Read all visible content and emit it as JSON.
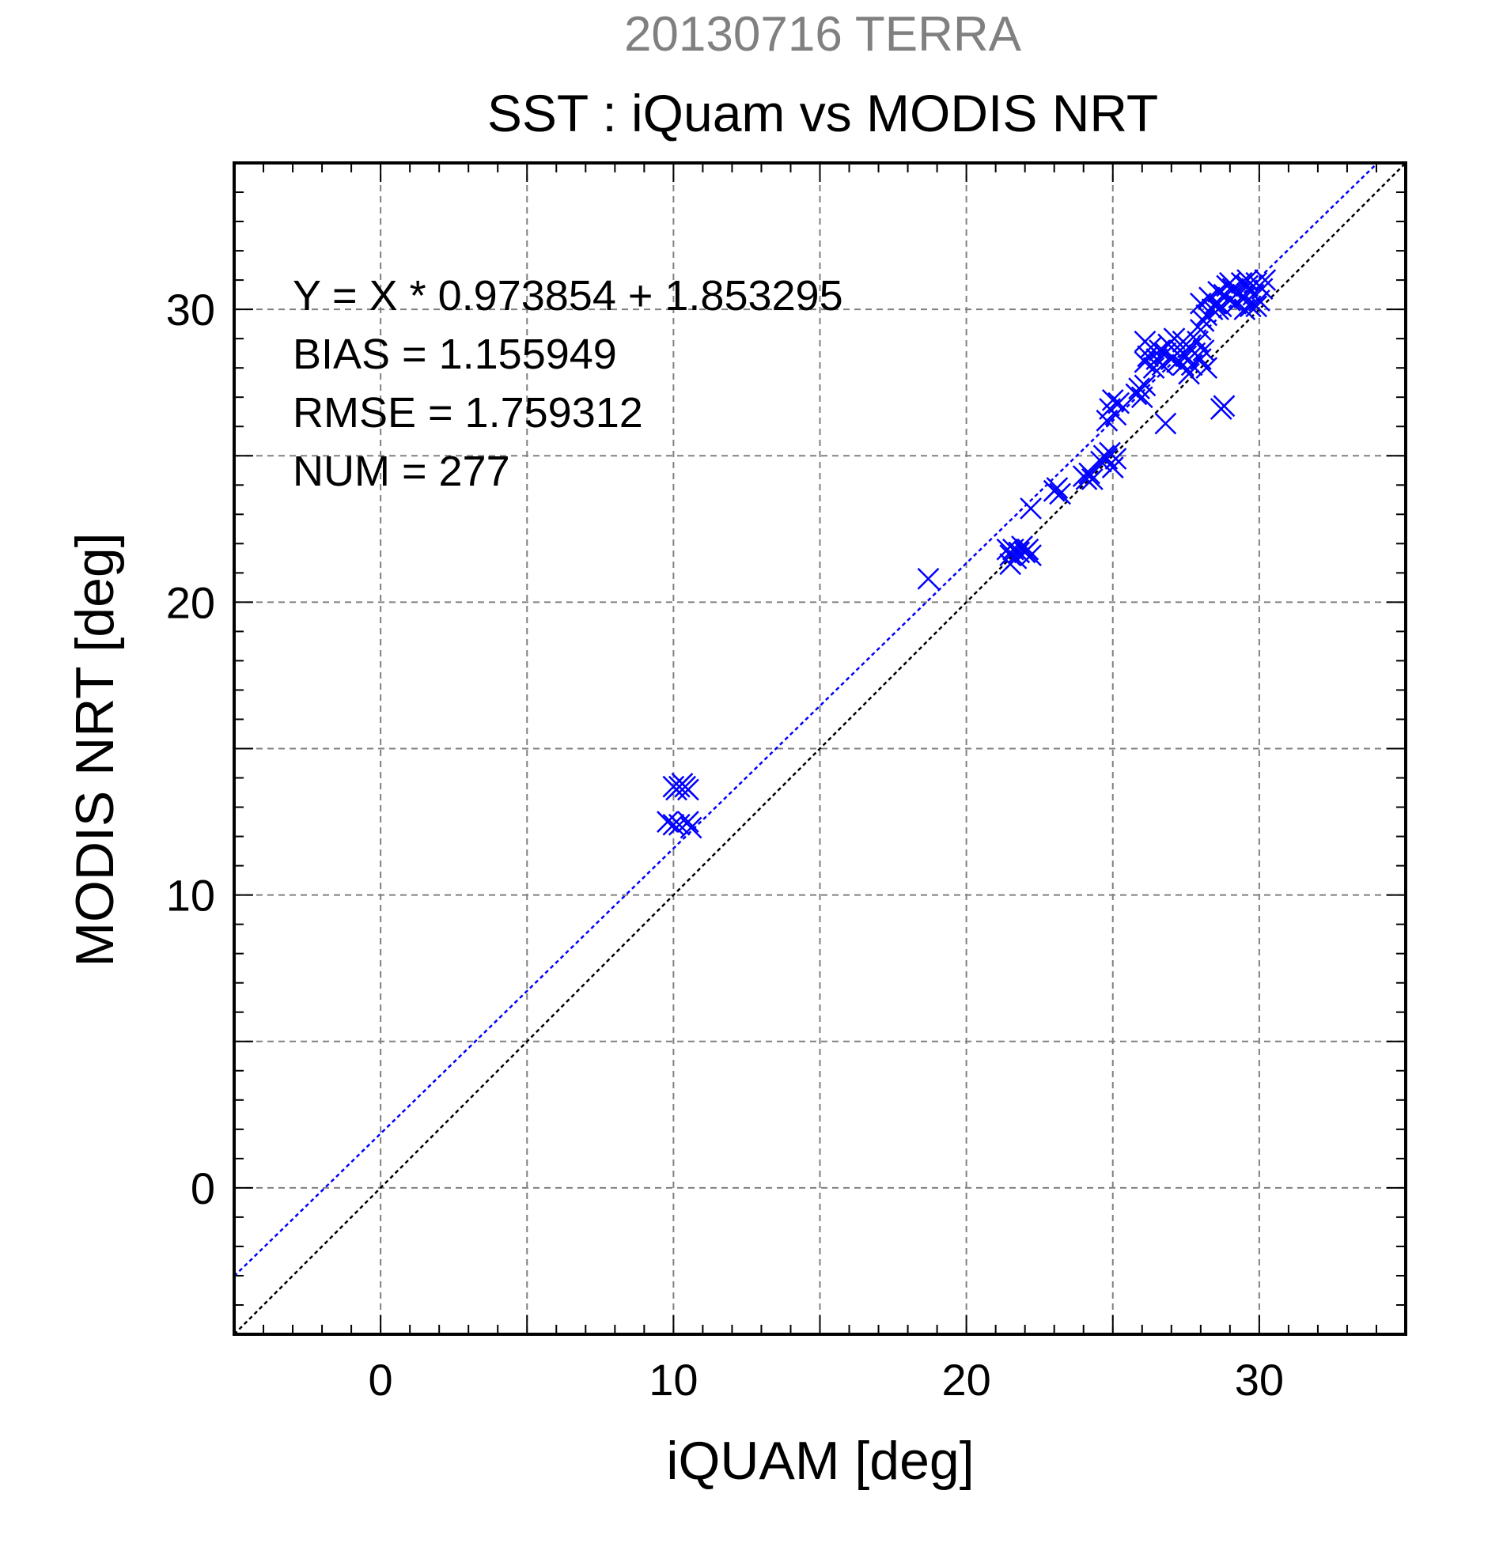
{
  "header": {
    "date_title": "20130716 TERRA",
    "main_title": "SST : iQuam vs MODIS NRT"
  },
  "colors": {
    "date_title": "#808080",
    "text": "#000000",
    "points": "#0000ff",
    "fit_line": "#0000ff",
    "identity_line": "#000000",
    "grid": "#808080"
  },
  "stats": {
    "fit_equation": "Y = X * 0.973854 + 1.853295",
    "bias": "BIAS = 1.155949",
    "rmse": "RMSE = 1.759312",
    "num": "NUM = 277"
  },
  "chart_data": {
    "type": "scatter",
    "xlabel": "iQUAM [deg]",
    "ylabel": "MODIS NRT [deg]",
    "xlim": [
      -5,
      35
    ],
    "ylim": [
      -5,
      35
    ],
    "xticks": [
      0,
      10,
      20,
      30
    ],
    "yticks": [
      0,
      10,
      20,
      30
    ],
    "grid": true,
    "marker": "x",
    "fit": {
      "slope": 0.973854,
      "intercept": 1.853295
    },
    "identity_line": true,
    "points": [
      [
        9.8,
        12.5
      ],
      [
        10.0,
        12.4
      ],
      [
        10.2,
        12.4
      ],
      [
        10.6,
        12.3
      ],
      [
        10.5,
        12.5
      ],
      [
        10.0,
        13.7
      ],
      [
        10.2,
        13.7
      ],
      [
        10.4,
        13.7
      ],
      [
        10.5,
        13.6
      ],
      [
        10.1,
        13.6
      ],
      [
        10.3,
        13.8
      ],
      [
        18.7,
        20.8
      ],
      [
        21.4,
        21.8
      ],
      [
        21.5,
        21.6
      ],
      [
        21.6,
        21.8
      ],
      [
        21.7,
        21.5
      ],
      [
        21.8,
        21.7
      ],
      [
        21.9,
        21.9
      ],
      [
        22.0,
        21.7
      ],
      [
        22.1,
        21.8
      ],
      [
        22.2,
        21.6
      ],
      [
        21.5,
        21.3
      ],
      [
        22.2,
        23.2
      ],
      [
        23.0,
        23.8
      ],
      [
        23.1,
        23.9
      ],
      [
        23.2,
        23.7
      ],
      [
        24.0,
        24.3
      ],
      [
        24.1,
        24.2
      ],
      [
        24.2,
        24.4
      ],
      [
        24.3,
        24.2
      ],
      [
        24.6,
        24.8
      ],
      [
        24.7,
        25.0
      ],
      [
        24.8,
        24.9
      ],
      [
        24.9,
        25.1
      ],
      [
        25.0,
        24.6
      ],
      [
        25.1,
        24.9
      ],
      [
        24.8,
        26.2
      ],
      [
        24.9,
        26.6
      ],
      [
        25.0,
        26.9
      ],
      [
        25.1,
        26.4
      ],
      [
        25.2,
        26.8
      ],
      [
        25.8,
        27.1
      ],
      [
        25.9,
        27.3
      ],
      [
        26.0,
        27.0
      ],
      [
        26.1,
        27.4
      ],
      [
        26.1,
        28.2
      ],
      [
        26.2,
        28.4
      ],
      [
        26.3,
        28.7
      ],
      [
        26.4,
        28.0
      ],
      [
        26.5,
        28.3
      ],
      [
        26.1,
        28.9
      ],
      [
        26.6,
        28.6
      ],
      [
        26.7,
        28.1
      ],
      [
        26.8,
        28.5
      ],
      [
        26.8,
        26.1
      ],
      [
        26.9,
        28.8
      ],
      [
        27.0,
        28.3
      ],
      [
        27.1,
        29.0
      ],
      [
        27.2,
        28.2
      ],
      [
        27.3,
        28.6
      ],
      [
        27.4,
        28.9
      ],
      [
        27.5,
        28.4
      ],
      [
        27.6,
        28.7
      ],
      [
        27.7,
        28.1
      ],
      [
        27.8,
        28.5
      ],
      [
        27.9,
        28.9
      ],
      [
        28.0,
        28.3
      ],
      [
        28.1,
        28.6
      ],
      [
        28.2,
        28.0
      ],
      [
        28.0,
        29.3
      ],
      [
        27.6,
        27.8
      ],
      [
        27.4,
        28.1
      ],
      [
        28.1,
        29.6
      ],
      [
        28.2,
        29.8
      ],
      [
        28.0,
        30.2
      ],
      [
        28.3,
        30.4
      ],
      [
        28.4,
        30.0
      ],
      [
        28.5,
        30.2
      ],
      [
        28.6,
        30.6
      ],
      [
        28.7,
        30.1
      ],
      [
        28.8,
        30.5
      ],
      [
        28.9,
        30.8
      ],
      [
        29.0,
        30.3
      ],
      [
        29.1,
        30.7
      ],
      [
        29.2,
        30.2
      ],
      [
        29.3,
        30.6
      ],
      [
        29.4,
        30.9
      ],
      [
        29.5,
        30.4
      ],
      [
        29.6,
        30.8
      ],
      [
        29.7,
        30.1
      ],
      [
        29.8,
        30.5
      ],
      [
        29.9,
        30.9
      ],
      [
        30.0,
        30.3
      ],
      [
        30.1,
        30.7
      ],
      [
        30.2,
        31.0
      ],
      [
        29.5,
        30.0
      ],
      [
        29.9,
        30.1
      ],
      [
        28.6,
        30.0
      ],
      [
        29.0,
        30.9
      ],
      [
        29.6,
        31.0
      ],
      [
        28.8,
        26.7
      ],
      [
        28.7,
        26.6
      ]
    ]
  }
}
